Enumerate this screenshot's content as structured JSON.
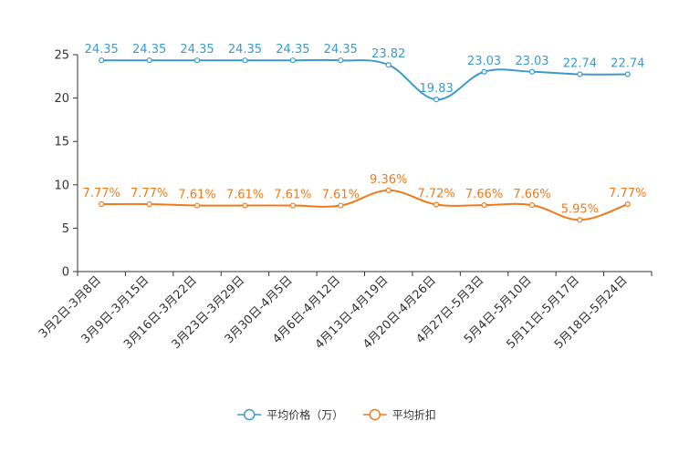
{
  "chart_data": {
    "type": "line",
    "title": "",
    "xlabel": "",
    "ylabel": "",
    "ylim": [
      0,
      25
    ],
    "yticks": [
      0,
      5,
      10,
      15,
      20,
      25
    ],
    "grid": false,
    "legend_position": "bottom-center",
    "categories": [
      "3月2日-3月8日",
      "3月9日-3月15日",
      "3月16日-3月22日",
      "3月23日-3月29日",
      "3月30日-4月5日",
      "4月6日-4月12日",
      "4月13日-4月19日",
      "4月20日-4月26日",
      "4月27日-5月3日",
      "5月4日-5月10日",
      "5月11日-5月17日",
      "5月18日-5月24日"
    ],
    "series": [
      {
        "name": "平均价格（万）",
        "color": "#3a9bcc",
        "values": [
          24.35,
          24.35,
          24.35,
          24.35,
          24.35,
          24.35,
          23.82,
          19.83,
          23.03,
          23.03,
          22.74,
          22.74
        ],
        "labels": [
          "24.35",
          "24.35",
          "24.35",
          "24.35",
          "24.35",
          "24.35",
          "23.82",
          "19.83",
          "23.03",
          "23.03",
          "22.74",
          "22.74"
        ]
      },
      {
        "name": "平均折扣",
        "color": "#f07a1a",
        "values": [
          7.77,
          7.77,
          7.61,
          7.61,
          7.61,
          7.61,
          9.36,
          7.72,
          7.66,
          7.66,
          5.95,
          7.77
        ],
        "labels": [
          "7.77%",
          "7.77%",
          "7.61%",
          "7.61%",
          "7.61%",
          "7.61%",
          "9.36%",
          "7.72%",
          "7.66%",
          "7.66%",
          "5.95%",
          "7.77%"
        ]
      }
    ]
  }
}
